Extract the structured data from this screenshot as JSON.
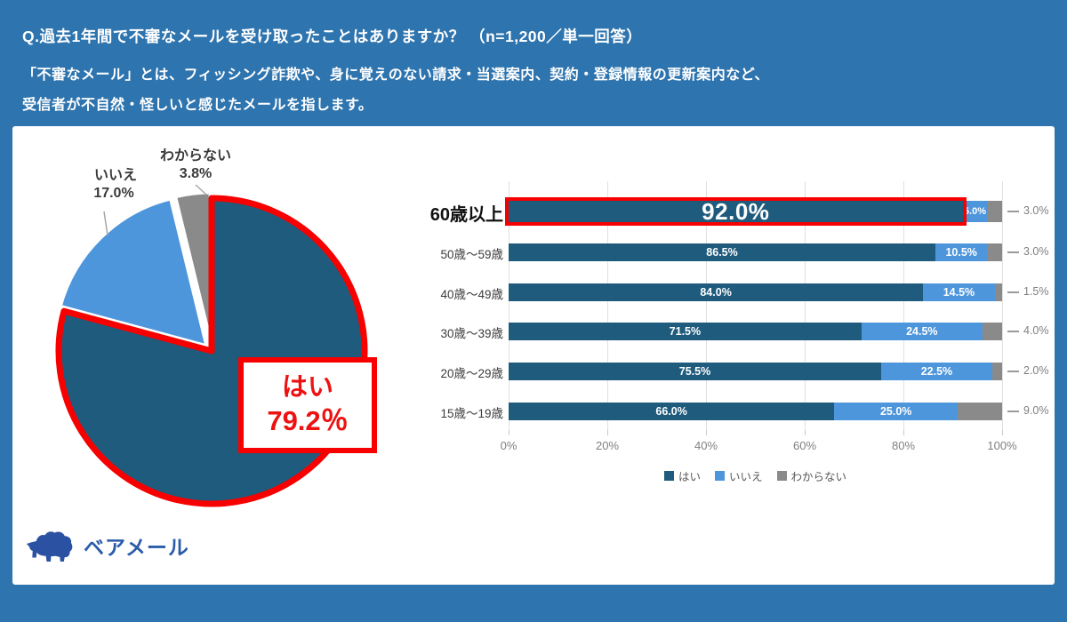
{
  "header": {
    "line1": "Q.過去1年間で不審なメールを受け取ったことはありますか？ （n=1,200／単一回答）",
    "line2": "「不審なメール」とは、フィッシング詐欺や、身に覚えのない請求・当選案内、契約・登録情報の更新案内など、",
    "line3": "受信者が不自然・怪しいと感じたメールを指します。"
  },
  "pie_callout": {
    "label": "はい",
    "value": "79.2％"
  },
  "pie_labels": {
    "no": {
      "label": "いいえ",
      "value": "17.0%"
    },
    "dk": {
      "label": "わからない",
      "value": "3.8%"
    }
  },
  "logo": {
    "text": "ベアメール"
  },
  "colors": {
    "yes": "#1f5b7d",
    "no": "#4e96dc",
    "dk": "#8a8a8a",
    "highlight": "#f70000",
    "background": "#2e74ae"
  },
  "chart_data": [
    {
      "type": "pie",
      "labels": [
        "はい",
        "いいえ",
        "わからない"
      ],
      "values": [
        79.2,
        17.0,
        3.8
      ],
      "unit": "%",
      "colors": [
        "#1f5b7d",
        "#4e96dc",
        "#8a8a8a"
      ],
      "start_angle": "12 o'clock, clockwise",
      "highlight": {
        "label": "はい",
        "border_color": "#f70000",
        "callout_text": "はい 79.2％"
      }
    },
    {
      "type": "bar",
      "orientation": "horizontal",
      "stacked": true,
      "categories": [
        "60歳以上",
        "50歳～59歳",
        "40歳～49歳",
        "30歳～39歳",
        "20歳～29歳",
        "15歳～19歳"
      ],
      "series": [
        {
          "name": "はい",
          "values": [
            92.0,
            86.5,
            84.0,
            71.5,
            75.5,
            66.0
          ]
        },
        {
          "name": "いいえ",
          "values": [
            5.0,
            10.5,
            14.5,
            24.5,
            22.5,
            25.0
          ]
        },
        {
          "name": "わからない",
          "values": [
            3.0,
            3.0,
            1.5,
            4.0,
            2.0,
            9.0
          ]
        }
      ],
      "colors": [
        "#1f5b7d",
        "#4e96dc",
        "#8a8a8a"
      ],
      "x_ticks": [
        "0%",
        "20%",
        "40%",
        "60%",
        "80%",
        "100%"
      ],
      "xlim": [
        0,
        100
      ],
      "grid": true,
      "legend": [
        "はい",
        "いいえ",
        "わからない"
      ],
      "legend_position": "bottom",
      "highlight_row": "60歳以上",
      "highlight_border_color": "#f70000"
    }
  ]
}
